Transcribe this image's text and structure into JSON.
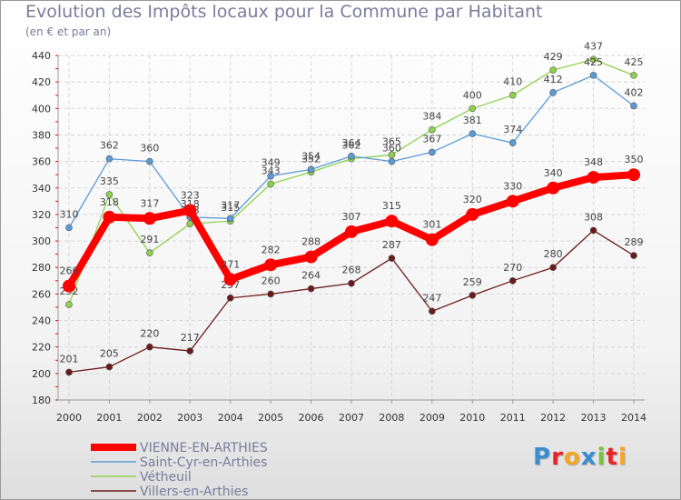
{
  "title": "Evolution des Impôts locaux pour la Commune par Habitant",
  "subtitle": "(en € et par an)",
  "logo": {
    "text": "Proxiti",
    "colors": [
      "#3a8ed0",
      "#e8232a",
      "#f6a623",
      "#3a8ed0",
      "#7bc142",
      "#e8232a",
      "#f6a623"
    ]
  },
  "chart_data": {
    "type": "line",
    "title": "Evolution des Impôts locaux pour la Commune par Habitant",
    "subtitle": "(en € et par an)",
    "xlabel": "",
    "ylabel": "",
    "ylim": [
      180,
      440
    ],
    "yticks": [
      180,
      200,
      220,
      240,
      260,
      280,
      300,
      320,
      340,
      360,
      380,
      400,
      420,
      440
    ],
    "grid": true,
    "legend_position": "bottom-left",
    "x": [
      "2000",
      "2001",
      "2002",
      "2003",
      "2004",
      "2005",
      "2006",
      "2007",
      "2008",
      "2009",
      "2010",
      "2011",
      "2012",
      "2013",
      "2014"
    ],
    "series": [
      {
        "name": "Villers-en-Arthies",
        "color": "#6b1a1a",
        "values": [
          201,
          205,
          220,
          217,
          257,
          260,
          264,
          268,
          287,
          247,
          259,
          270,
          280,
          308,
          289
        ]
      },
      {
        "name": "Vétheuil",
        "color": "#8fd14f",
        "values": [
          252,
          335,
          291,
          313,
          315,
          343,
          352,
          362,
          365,
          384,
          400,
          410,
          429,
          437,
          425
        ]
      },
      {
        "name": "Saint-Cyr-en-Arthies",
        "color": "#5b9bd5",
        "values": [
          310,
          362,
          360,
          318,
          317,
          349,
          354,
          364,
          360,
          367,
          381,
          374,
          412,
          425,
          402
        ]
      },
      {
        "name": "VIENNE-EN-ARTHIES",
        "color": "#ff0000",
        "values": [
          266,
          318,
          317,
          323,
          271,
          282,
          288,
          307,
          315,
          301,
          320,
          330,
          340,
          348,
          350
        ]
      }
    ]
  }
}
